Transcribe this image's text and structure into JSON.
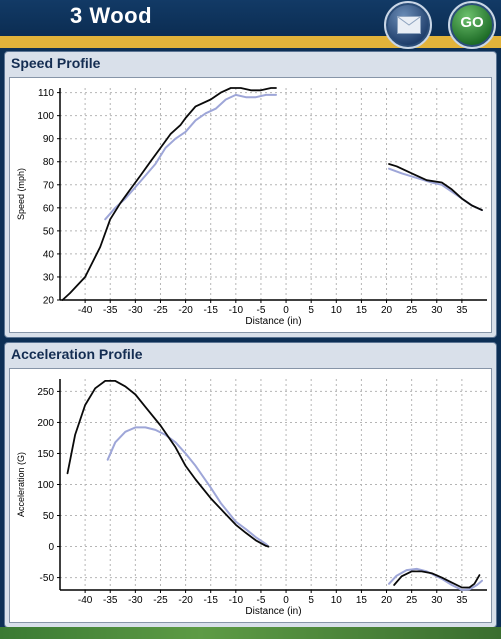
{
  "header": {
    "title": "3 Wood",
    "mail_icon": "envelope-icon",
    "go_label": "GO",
    "accent": "#e2b33a"
  },
  "chart_data": [
    {
      "title": "Speed Profile",
      "type": "line",
      "xlabel": "Distance (in)",
      "ylabel": "Speed (mph)",
      "xlim": [
        -45,
        40
      ],
      "ylim": [
        20,
        112
      ],
      "xticks": [
        -40,
        -35,
        -30,
        -25,
        -20,
        -15,
        -10,
        -5,
        0,
        5,
        10,
        15,
        20,
        25,
        30,
        35
      ],
      "yticks": [
        20,
        30,
        40,
        50,
        60,
        70,
        80,
        90,
        100,
        110
      ],
      "grid": true,
      "series": [
        {
          "color": "#0a0a0a",
          "segments": [
            [
              [
                -44.5,
                20
              ],
              [
                -43,
                23
              ],
              [
                -40,
                30
              ],
              [
                -37,
                43
              ],
              [
                -35,
                55
              ],
              [
                -33,
                62
              ],
              [
                -31,
                68
              ],
              [
                -29,
                74
              ],
              [
                -27,
                80
              ],
              [
                -25,
                86
              ],
              [
                -23,
                92
              ],
              [
                -21,
                96
              ],
              [
                -20,
                99
              ],
              [
                -18,
                104
              ],
              [
                -15,
                107
              ],
              [
                -13,
                110
              ],
              [
                -11,
                112
              ],
              [
                -9,
                112
              ],
              [
                -7,
                111
              ],
              [
                -5,
                111
              ],
              [
                -3,
                112
              ],
              [
                -2,
                112
              ]
            ],
            [
              [
                20.5,
                79
              ],
              [
                22,
                78
              ],
              [
                25,
                75
              ],
              [
                28,
                72
              ],
              [
                31,
                71
              ],
              [
                33,
                68
              ],
              [
                35,
                64
              ],
              [
                37,
                61
              ],
              [
                39,
                59
              ]
            ]
          ]
        },
        {
          "color": "#9ea6d8",
          "segments": [
            [
              [
                -36,
                55
              ],
              [
                -34,
                60
              ],
              [
                -32,
                64
              ],
              [
                -30,
                69
              ],
              [
                -28,
                74
              ],
              [
                -26,
                79
              ],
              [
                -24,
                86
              ],
              [
                -22,
                90
              ],
              [
                -20,
                93
              ],
              [
                -18,
                98
              ],
              [
                -16,
                101
              ],
              [
                -14,
                103
              ],
              [
                -12,
                107
              ],
              [
                -10,
                109
              ],
              [
                -8,
                108
              ],
              [
                -6,
                108
              ],
              [
                -4,
                109
              ],
              [
                -2,
                109
              ]
            ],
            [
              [
                20.5,
                77
              ],
              [
                23,
                75
              ],
              [
                26,
                73
              ],
              [
                29,
                71
              ],
              [
                31,
                70
              ],
              [
                33,
                67
              ],
              [
                35,
                64
              ],
              [
                37,
                61
              ],
              [
                39,
                59
              ]
            ]
          ]
        }
      ]
    },
    {
      "title": "Acceleration Profile",
      "type": "line",
      "xlabel": "Distance (in)",
      "ylabel": "Acceleration (G)",
      "xlim": [
        -45,
        40
      ],
      "ylim": [
        -70,
        270
      ],
      "xticks": [
        -40,
        -35,
        -30,
        -25,
        -20,
        -15,
        -10,
        -5,
        0,
        5,
        10,
        15,
        20,
        25,
        30,
        35
      ],
      "yticks": [
        -50,
        0,
        50,
        100,
        150,
        200,
        250
      ],
      "grid": true,
      "series": [
        {
          "color": "#0a0a0a",
          "segments": [
            [
              [
                -43.5,
                118
              ],
              [
                -42,
                180
              ],
              [
                -40,
                228
              ],
              [
                -38,
                255
              ],
              [
                -36,
                267
              ],
              [
                -34,
                267
              ],
              [
                -32,
                258
              ],
              [
                -30,
                245
              ],
              [
                -28,
                225
              ],
              [
                -25,
                195
              ],
              [
                -22,
                160
              ],
              [
                -20,
                130
              ],
              [
                -18,
                108
              ],
              [
                -15,
                78
              ],
              [
                -12,
                52
              ],
              [
                -10,
                35
              ],
              [
                -8,
                22
              ],
              [
                -6,
                10
              ],
              [
                -4,
                1
              ],
              [
                -3.5,
                0
              ]
            ],
            [
              [
                21.5,
                -62
              ],
              [
                23,
                -48
              ],
              [
                25,
                -40
              ],
              [
                27,
                -40
              ],
              [
                29,
                -43
              ],
              [
                31,
                -50
              ],
              [
                33,
                -58
              ],
              [
                35,
                -66
              ],
              [
                36.5,
                -66
              ],
              [
                37.5,
                -60
              ],
              [
                38.5,
                -46
              ]
            ]
          ]
        },
        {
          "color": "#9ea6d8",
          "segments": [
            [
              [
                -35.5,
                140
              ],
              [
                -34,
                168
              ],
              [
                -32,
                185
              ],
              [
                -30,
                192
              ],
              [
                -28,
                192
              ],
              [
                -26,
                188
              ],
              [
                -24,
                180
              ],
              [
                -22,
                168
              ],
              [
                -20,
                150
              ],
              [
                -18,
                130
              ],
              [
                -15,
                95
              ],
              [
                -13,
                70
              ],
              [
                -10,
                40
              ],
              [
                -8,
                28
              ],
              [
                -6,
                15
              ],
              [
                -4,
                4
              ],
              [
                -3.5,
                0
              ]
            ],
            [
              [
                20.5,
                -60
              ],
              [
                22,
                -47
              ],
              [
                24,
                -38
              ],
              [
                26,
                -36
              ],
              [
                28,
                -40
              ],
              [
                31,
                -52
              ],
              [
                33,
                -62
              ],
              [
                35,
                -70
              ],
              [
                36.5,
                -69
              ],
              [
                38,
                -62
              ],
              [
                39,
                -55
              ]
            ]
          ]
        }
      ]
    }
  ]
}
